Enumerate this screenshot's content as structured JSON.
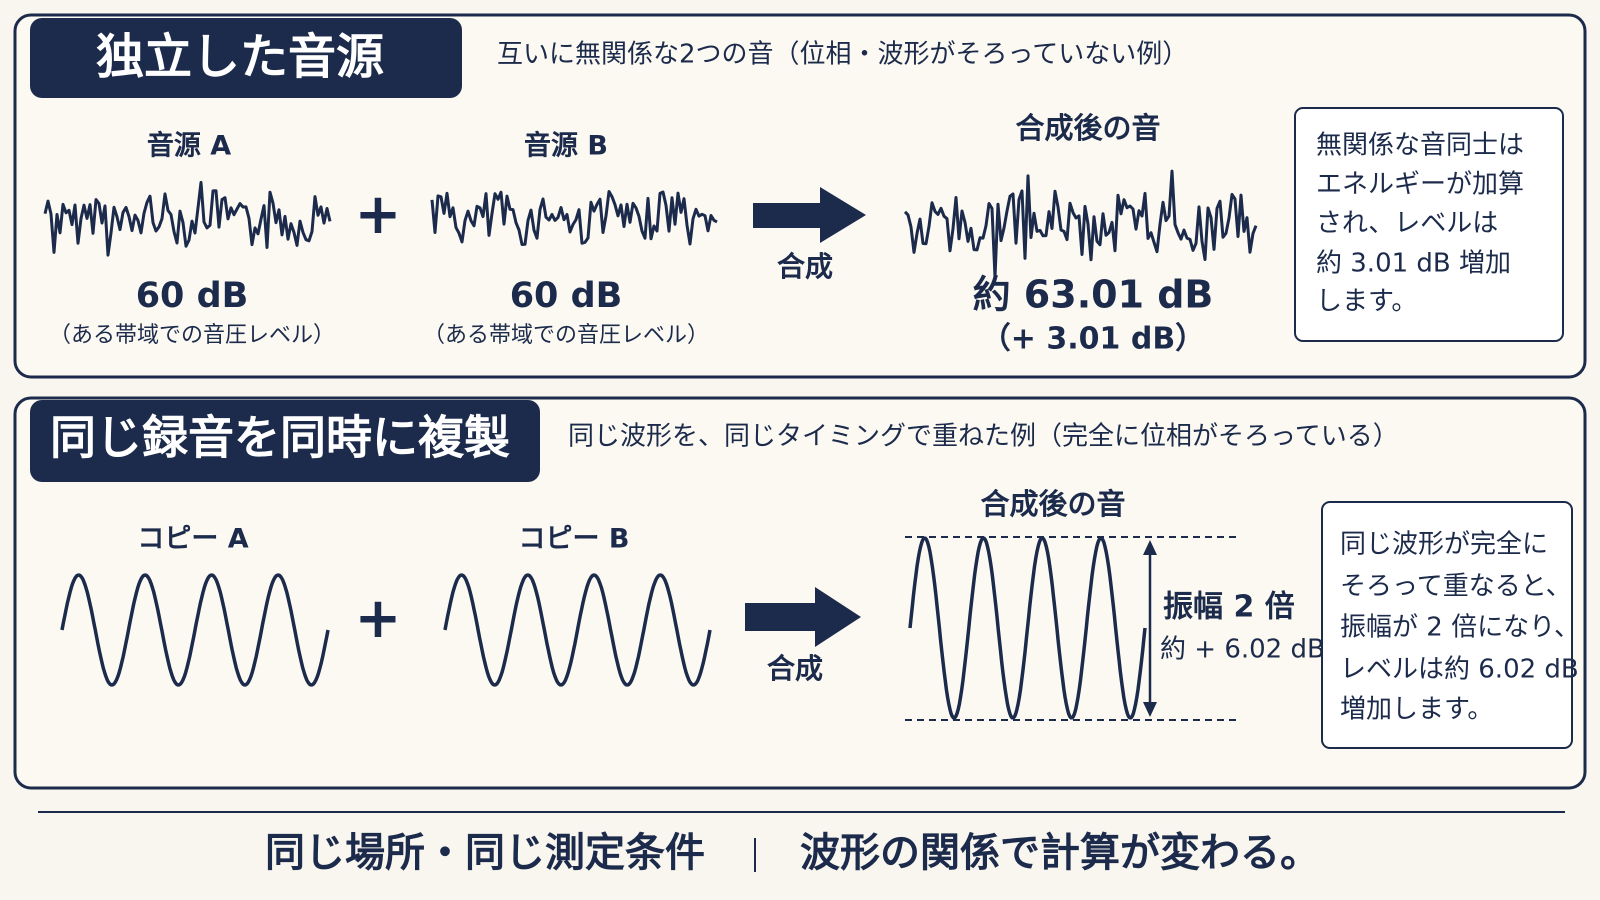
{
  "panels": [
    {
      "title": "独立した音源",
      "subtitle": "互いに無関係な2つの音（位相・波形がそろっていない例）",
      "sources": [
        {
          "label": "音源 A",
          "level": "60 dB",
          "note": "（ある帯域での音圧レベル）"
        },
        {
          "label": "音源 B",
          "level": "60 dB",
          "note": "（ある帯域での音圧レベル）"
        }
      ],
      "plus": "+",
      "arrow_label": "合成",
      "result": {
        "label": "合成後の音",
        "level": "約 63.01 dB",
        "delta": "（+ 3.01 dB）"
      },
      "note": [
        "無関係な音同士は",
        "エネルギーが加算",
        "され、レベルは",
        "約 3.01 dB 増加",
        "します。"
      ]
    },
    {
      "title": "同じ録音を同時に複製",
      "subtitle": "同じ波形を、同じタイミングで重ねた例（完全に位相がそろっている）",
      "sources": [
        {
          "label": "コピー A"
        },
        {
          "label": "コピー B"
        }
      ],
      "plus": "+",
      "arrow_label": "合成",
      "result": {
        "label": "合成後の音",
        "amplitude": "振幅 2 倍",
        "delta": "約 + 6.02 dB"
      },
      "note": [
        "同じ波形が完全に",
        "そろって重なると、",
        "振幅が 2 倍になり、",
        "レベルは約 6.02 dB",
        "増加します。"
      ]
    }
  ],
  "footer": {
    "left": "同じ場所・同じ測定条件",
    "right": "波形の関係で計算が変わる。"
  }
}
